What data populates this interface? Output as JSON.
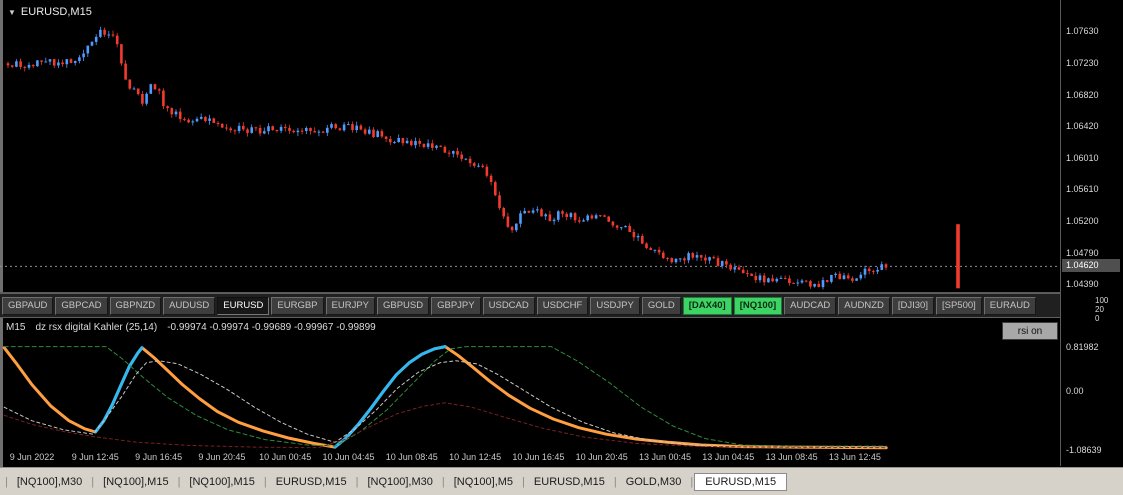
{
  "chart": {
    "title": "EURUSD,M15"
  },
  "icons": {
    "chevron_down": "▼"
  },
  "mini_scale": [
    "100",
    "20",
    "0"
  ],
  "ticker": {
    "symbols": [
      {
        "label": "GBPAUD",
        "state": "default"
      },
      {
        "label": "GBPCAD",
        "state": "default"
      },
      {
        "label": "GBPNZD",
        "state": "default"
      },
      {
        "label": "AUDUSD",
        "state": "default"
      },
      {
        "label": "EURUSD",
        "state": "active"
      },
      {
        "label": "EURGBP",
        "state": "default"
      },
      {
        "label": "EURJPY",
        "state": "default"
      },
      {
        "label": "GBPUSD",
        "state": "default"
      },
      {
        "label": "GBPJPY",
        "state": "default"
      },
      {
        "label": "USDCAD",
        "state": "default"
      },
      {
        "label": "USDCHF",
        "state": "default"
      },
      {
        "label": "USDJPY",
        "state": "default"
      },
      {
        "label": "GOLD",
        "state": "default"
      },
      {
        "label": "[DAX40]",
        "state": "green"
      },
      {
        "label": "[NQ100]",
        "state": "green"
      },
      {
        "label": "AUDCAD",
        "state": "default"
      },
      {
        "label": "AUDNZD",
        "state": "default"
      },
      {
        "label": "[DJI30]",
        "state": "default"
      },
      {
        "label": "[SP500]",
        "state": "default"
      },
      {
        "label": "EURAUD",
        "state": "default"
      }
    ]
  },
  "indicator": {
    "timeframe": "M15",
    "name": "dz rsx digital Kahler (25,14)",
    "values": "-0.99974 -0.99974 -0.99689 -0.99967 -0.99899",
    "button_label": "rsi on"
  },
  "tabs": [
    {
      "label": "[NQ100],M30",
      "active": false
    },
    {
      "label": "[NQ100],M15",
      "active": false
    },
    {
      "label": "[NQ100],M15",
      "active": false
    },
    {
      "label": "EURUSD,M15",
      "active": false
    },
    {
      "label": "[NQ100],M30",
      "active": false
    },
    {
      "label": "[NQ100],M5",
      "active": false
    },
    {
      "label": "EURUSD,M15",
      "active": false
    },
    {
      "label": "GOLD,M30",
      "active": false
    },
    {
      "label": "EURUSD,M15",
      "active": true
    }
  ],
  "colors": {
    "bull": "#4f9bff",
    "bear": "#f23b2e",
    "current_line": "#8f8f8f",
    "ind_main": "#ff9f40",
    "ind_up": "#2eb8f5",
    "ind_green": "#2e8b3a",
    "ind_gray": "#c8c8c8",
    "ind_red": "#7a2020"
  },
  "chart_data": [
    {
      "type": "candlestick",
      "symbol": "EURUSD",
      "timeframe": "M15",
      "y_ticks": [
        "1.07630",
        "1.07230",
        "1.06820",
        "1.06420",
        "1.06010",
        "1.05610",
        "1.05200",
        "1.04790",
        "1.04390"
      ],
      "current_price": "1.04620",
      "ylim": [
        1.0428,
        1.0803
      ],
      "x_labels": [
        "9 Jun 2022",
        "9 Jun 12:45",
        "9 Jun 16:45",
        "9 Jun 20:45",
        "10 Jun 00:45",
        "10 Jun 04:45",
        "10 Jun 08:45",
        "10 Jun 12:45",
        "10 Jun 16:45",
        "10 Jun 20:45",
        "13 Jun 00:45",
        "13 Jun 04:45",
        "13 Jun 08:45",
        "13 Jun 12:45"
      ],
      "bar_count": 210,
      "body_noise": 0.0005,
      "wick_noise": 0.0005,
      "close_path": [
        [
          0.0,
          1.0722
        ],
        [
          0.02,
          1.0718
        ],
        [
          0.04,
          1.0724
        ],
        [
          0.06,
          1.072
        ],
        [
          0.08,
          1.073
        ],
        [
          0.09,
          1.074
        ],
        [
          0.105,
          1.0763
        ],
        [
          0.112,
          1.0752
        ],
        [
          0.12,
          1.076
        ],
        [
          0.129,
          1.0722
        ],
        [
          0.137,
          1.0695
        ],
        [
          0.145,
          1.0685
        ],
        [
          0.152,
          1.067
        ],
        [
          0.16,
          1.0692
        ],
        [
          0.17,
          1.0688
        ],
        [
          0.18,
          1.0665
        ],
        [
          0.19,
          1.0656
        ],
        [
          0.21,
          1.065
        ],
        [
          0.235,
          1.0648
        ],
        [
          0.26,
          1.0638
        ],
        [
          0.285,
          1.0636
        ],
        [
          0.31,
          1.0641
        ],
        [
          0.335,
          1.0634
        ],
        [
          0.36,
          1.0638
        ],
        [
          0.385,
          1.0642
        ],
        [
          0.41,
          1.0634
        ],
        [
          0.435,
          1.0626
        ],
        [
          0.46,
          1.062
        ],
        [
          0.485,
          1.0616
        ],
        [
          0.51,
          1.0606
        ],
        [
          0.527,
          1.0596
        ],
        [
          0.543,
          1.0588
        ],
        [
          0.558,
          1.0545
        ],
        [
          0.572,
          1.0508
        ],
        [
          0.585,
          1.0528
        ],
        [
          0.6,
          1.0532
        ],
        [
          0.615,
          1.0524
        ],
        [
          0.632,
          1.053
        ],
        [
          0.65,
          1.0522
        ],
        [
          0.668,
          1.0526
        ],
        [
          0.685,
          1.052
        ],
        [
          0.7,
          1.0512
        ],
        [
          0.715,
          1.05
        ],
        [
          0.73,
          1.0486
        ],
        [
          0.745,
          1.0474
        ],
        [
          0.762,
          1.047
        ],
        [
          0.78,
          1.0478
        ],
        [
          0.8,
          1.047
        ],
        [
          0.82,
          1.0462
        ],
        [
          0.84,
          1.0453
        ],
        [
          0.862,
          1.0446
        ],
        [
          0.88,
          1.0443
        ],
        [
          0.9,
          1.044
        ],
        [
          0.922,
          1.0437
        ],
        [
          0.94,
          1.0452
        ],
        [
          0.958,
          1.0446
        ],
        [
          0.975,
          1.0455
        ],
        [
          1.0,
          1.0462
        ]
      ],
      "detached_bar": {
        "x_frac": 1.082,
        "high": 1.0516,
        "low": 1.0434,
        "direction": "down"
      }
    },
    {
      "type": "line",
      "title": "dz rsx digital Kahler (25,14)",
      "y_ticks": [
        "0.81982",
        "0.00",
        "-1.08639"
      ],
      "ylim": [
        -1.13,
        1.35
      ],
      "series": [
        {
          "name": "rsx-main",
          "color": "#ff9f40",
          "width": 3,
          "dash": "",
          "points": [
            [
              0.004,
              0.8
            ],
            [
              0.015,
              0.52
            ],
            [
              0.03,
              0.12
            ],
            [
              0.048,
              -0.28
            ],
            [
              0.065,
              -0.55
            ],
            [
              0.08,
              -0.7
            ],
            [
              0.09,
              -0.76
            ],
            [
              0.098,
              -0.55
            ],
            [
              0.106,
              -0.25
            ],
            [
              0.114,
              0.1
            ],
            [
              0.122,
              0.45
            ],
            [
              0.13,
              0.7
            ],
            [
              0.134,
              0.8
            ],
            [
              0.145,
              0.62
            ],
            [
              0.158,
              0.38
            ],
            [
              0.172,
              0.12
            ],
            [
              0.188,
              -0.14
            ],
            [
              0.205,
              -0.38
            ],
            [
              0.225,
              -0.58
            ],
            [
              0.248,
              -0.74
            ],
            [
              0.272,
              -0.87
            ],
            [
              0.296,
              -0.97
            ],
            [
              0.316,
              -1.04
            ],
            [
              0.326,
              -0.88
            ],
            [
              0.338,
              -0.62
            ],
            [
              0.35,
              -0.32
            ],
            [
              0.362,
              0.0
            ],
            [
              0.374,
              0.3
            ],
            [
              0.386,
              0.52
            ],
            [
              0.398,
              0.68
            ],
            [
              0.41,
              0.78
            ],
            [
              0.42,
              0.82
            ],
            [
              0.432,
              0.66
            ],
            [
              0.446,
              0.44
            ],
            [
              0.462,
              0.18
            ],
            [
              0.48,
              -0.08
            ],
            [
              0.5,
              -0.32
            ],
            [
              0.522,
              -0.52
            ],
            [
              0.546,
              -0.68
            ],
            [
              0.572,
              -0.8
            ],
            [
              0.6,
              -0.89
            ],
            [
              0.63,
              -0.95
            ],
            [
              0.662,
              -1.0
            ],
            [
              0.7,
              -1.03
            ],
            [
              0.75,
              -1.04
            ],
            [
              0.836,
              -1.05
            ]
          ]
        },
        {
          "name": "rsx-up-1",
          "color": "#2eb8f5",
          "width": 3,
          "dash": "",
          "points": [
            [
              0.09,
              -0.76
            ],
            [
              0.098,
              -0.55
            ],
            [
              0.106,
              -0.25
            ],
            [
              0.114,
              0.1
            ],
            [
              0.122,
              0.45
            ],
            [
              0.13,
              0.7
            ],
            [
              0.134,
              0.8
            ]
          ]
        },
        {
          "name": "rsx-up-2",
          "color": "#2eb8f5",
          "width": 3,
          "dash": "",
          "points": [
            [
              0.316,
              -1.04
            ],
            [
              0.326,
              -0.88
            ],
            [
              0.338,
              -0.62
            ],
            [
              0.35,
              -0.32
            ],
            [
              0.362,
              0.0
            ],
            [
              0.374,
              0.3
            ],
            [
              0.386,
              0.52
            ],
            [
              0.398,
              0.68
            ],
            [
              0.41,
              0.78
            ],
            [
              0.42,
              0.82
            ]
          ]
        },
        {
          "name": "signal-green",
          "color": "#2e8b3a",
          "width": 1,
          "dash": "4 3",
          "points": [
            [
              0.004,
              0.82
            ],
            [
              0.1,
              0.82
            ],
            [
              0.115,
              0.6
            ],
            [
              0.135,
              0.25
            ],
            [
              0.158,
              -0.12
            ],
            [
              0.185,
              -0.45
            ],
            [
              0.215,
              -0.72
            ],
            [
              0.25,
              -0.9
            ],
            [
              0.29,
              -1.0
            ],
            [
              0.316,
              -1.02
            ],
            [
              0.34,
              -0.75
            ],
            [
              0.365,
              -0.35
            ],
            [
              0.39,
              0.15
            ],
            [
              0.41,
              0.55
            ],
            [
              0.425,
              0.78
            ],
            [
              0.44,
              0.82
            ],
            [
              0.52,
              0.82
            ],
            [
              0.545,
              0.55
            ],
            [
              0.575,
              0.15
            ],
            [
              0.605,
              -0.3
            ],
            [
              0.635,
              -0.65
            ],
            [
              0.665,
              -0.88
            ],
            [
              0.7,
              -1.0
            ],
            [
              0.74,
              -1.02
            ],
            [
              0.836,
              -1.02
            ]
          ]
        },
        {
          "name": "signal-gray",
          "color": "#c8c8c8",
          "width": 1,
          "dash": "3 3",
          "points": [
            [
              0.004,
              -0.3
            ],
            [
              0.03,
              -0.55
            ],
            [
              0.06,
              -0.72
            ],
            [
              0.088,
              -0.8
            ],
            [
              0.1,
              -0.5
            ],
            [
              0.115,
              -0.1
            ],
            [
              0.128,
              0.3
            ],
            [
              0.138,
              0.52
            ],
            [
              0.15,
              0.56
            ],
            [
              0.168,
              0.5
            ],
            [
              0.19,
              0.3
            ],
            [
              0.215,
              0.02
            ],
            [
              0.24,
              -0.3
            ],
            [
              0.265,
              -0.58
            ],
            [
              0.29,
              -0.8
            ],
            [
              0.316,
              -0.95
            ],
            [
              0.335,
              -0.7
            ],
            [
              0.355,
              -0.35
            ],
            [
              0.375,
              0.05
            ],
            [
              0.395,
              0.35
            ],
            [
              0.415,
              0.52
            ],
            [
              0.43,
              0.56
            ],
            [
              0.45,
              0.5
            ],
            [
              0.47,
              0.3
            ],
            [
              0.495,
              0.0
            ],
            [
              0.52,
              -0.3
            ],
            [
              0.55,
              -0.58
            ],
            [
              0.58,
              -0.78
            ],
            [
              0.615,
              -0.92
            ],
            [
              0.655,
              -1.0
            ],
            [
              0.7,
              -1.03
            ],
            [
              0.836,
              -1.04
            ]
          ]
        },
        {
          "name": "signal-red",
          "color": "#7a2020",
          "width": 1,
          "dash": "3 3",
          "points": [
            [
              0.004,
              -0.45
            ],
            [
              0.03,
              -0.62
            ],
            [
              0.06,
              -0.75
            ],
            [
              0.09,
              -0.85
            ],
            [
              0.13,
              -0.95
            ],
            [
              0.18,
              -1.01
            ],
            [
              0.24,
              -1.04
            ],
            [
              0.3,
              -1.05
            ],
            [
              0.325,
              -0.9
            ],
            [
              0.35,
              -0.65
            ],
            [
              0.375,
              -0.42
            ],
            [
              0.4,
              -0.28
            ],
            [
              0.42,
              -0.22
            ],
            [
              0.445,
              -0.3
            ],
            [
              0.475,
              -0.48
            ],
            [
              0.51,
              -0.68
            ],
            [
              0.55,
              -0.85
            ],
            [
              0.6,
              -0.97
            ],
            [
              0.66,
              -1.03
            ],
            [
              0.836,
              -1.05
            ]
          ]
        }
      ]
    }
  ]
}
